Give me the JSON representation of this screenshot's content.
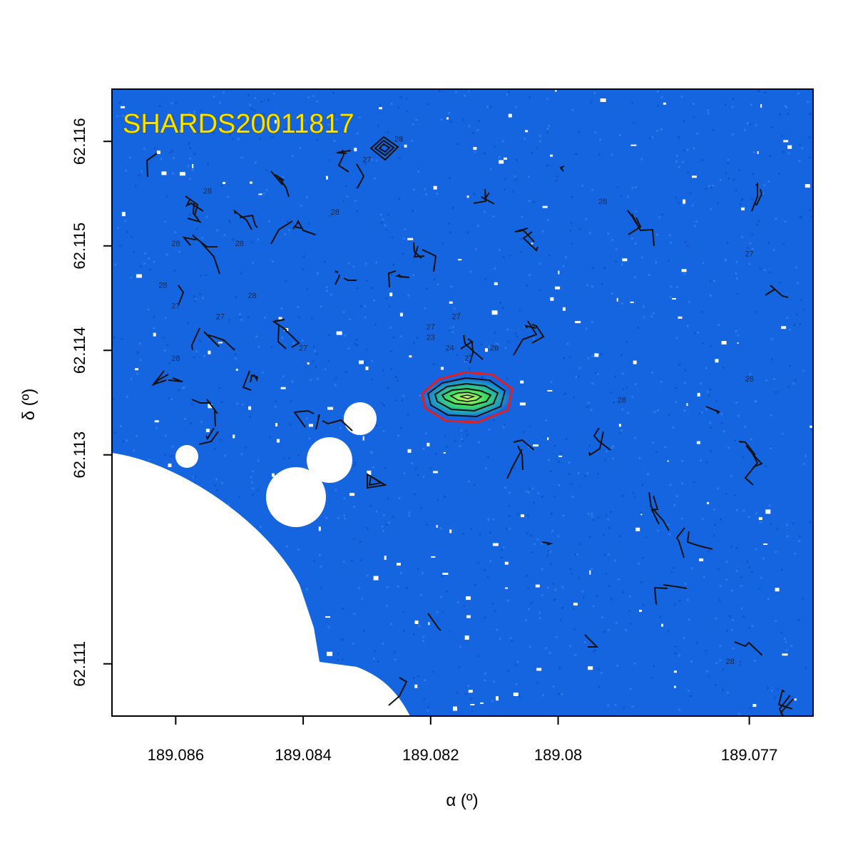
{
  "chart_data": {
    "type": "heatmap",
    "title": "SHARDS20011817",
    "xlabel": "α (º)",
    "ylabel": "δ (º)",
    "xlim": [
      189.087,
      189.076
    ],
    "ylim": [
      62.1105,
      62.1165
    ],
    "x_ticks": [
      189.086,
      189.084,
      189.082,
      189.08,
      189.077
    ],
    "x_tick_labels": [
      "189.086",
      "189.084",
      "189.082",
      "189.08",
      "189.077"
    ],
    "y_ticks": [
      62.116,
      62.115,
      62.114,
      62.113,
      62.111
    ],
    "y_tick_labels": [
      "62.116",
      "62.115",
      "62.114",
      "62.113",
      "62.111"
    ],
    "background_color": "#1565e0",
    "masked_color": "#ffffff",
    "source_contour_color": "#e02020",
    "contour_color": "#111111",
    "source_center": [
      189.082,
      62.114
    ],
    "contour_levels": [
      "23",
      "24",
      "27"
    ],
    "contour_labels": [
      {
        "text": "28",
        "x": 189.0855,
        "y": 62.1155
      },
      {
        "text": "28",
        "x": 189.086,
        "y": 62.115
      },
      {
        "text": "28",
        "x": 189.0862,
        "y": 62.1146
      },
      {
        "text": "27",
        "x": 189.086,
        "y": 62.1144
      },
      {
        "text": "28",
        "x": 189.086,
        "y": 62.1139
      },
      {
        "text": "27",
        "x": 189.0853,
        "y": 62.1143
      },
      {
        "text": "28",
        "x": 189.0848,
        "y": 62.1145
      },
      {
        "text": "28",
        "x": 189.085,
        "y": 62.115
      },
      {
        "text": "28",
        "x": 189.0835,
        "y": 62.1153
      },
      {
        "text": "27",
        "x": 189.084,
        "y": 62.114
      },
      {
        "text": "27",
        "x": 189.083,
        "y": 62.1158
      },
      {
        "text": "28",
        "x": 189.0825,
        "y": 62.116
      },
      {
        "text": "27",
        "x": 189.082,
        "y": 62.1142
      },
      {
        "text": "27",
        "x": 189.0816,
        "y": 62.1143
      },
      {
        "text": "23",
        "x": 189.082,
        "y": 62.1141
      },
      {
        "text": "24",
        "x": 189.0817,
        "y": 62.114
      },
      {
        "text": "27",
        "x": 189.0814,
        "y": 62.1139
      },
      {
        "text": "26",
        "x": 189.081,
        "y": 62.114
      },
      {
        "text": "28",
        "x": 189.079,
        "y": 62.1135
      },
      {
        "text": "28",
        "x": 189.0793,
        "y": 62.1154
      },
      {
        "text": "27",
        "x": 189.077,
        "y": 62.1149
      },
      {
        "text": "28",
        "x": 189.077,
        "y": 62.1137
      },
      {
        "text": "28",
        "x": 189.0773,
        "y": 62.111
      }
    ]
  }
}
